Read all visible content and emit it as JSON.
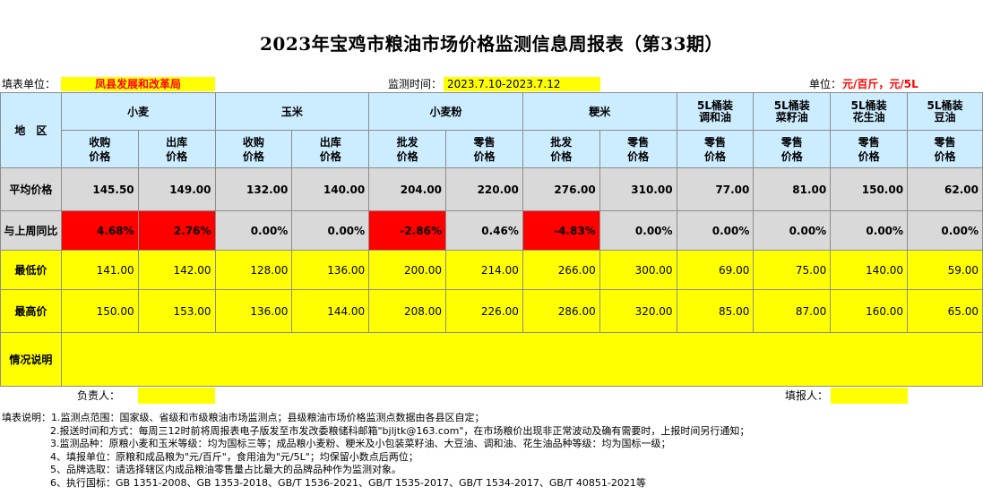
{
  "title": "2023年宝鸡市粮油市场价格监测信息周报表（第33期）",
  "info": {
    "unit_label": "填表单位：",
    "unit_value": "凤县发展和改革局",
    "time_label": "监测时间：",
    "time_value": "2023.7.10-2023.7.12",
    "price_unit_label": "单位：",
    "price_unit_value": "元/百斤，元/5L"
  },
  "headers": {
    "region": "地　区",
    "wheat": "小麦",
    "corn": "玉米",
    "flour": "小麦粉",
    "rice": "粳米",
    "oil1": "5L桶装\n调和油",
    "oil2": "5L桶装\n菜籽油",
    "oil3": "5L桶装\n花生油",
    "oil4": "5L桶装\n豆油",
    "purchase": "收购\n价格",
    "outbound": "出库\n价格",
    "wholesale": "批发\n价格",
    "retail": "零售\n价格"
  },
  "rows": {
    "avg_label": "平均价格",
    "avg": [
      "145.50",
      "149.00",
      "132.00",
      "140.00",
      "204.00",
      "220.00",
      "276.00",
      "310.00",
      "77.00",
      "81.00",
      "150.00",
      "62.00"
    ],
    "wow_label": "与上周同比",
    "wow": [
      "4.68%",
      "2.76%",
      "0.00%",
      "0.00%",
      "-2.86%",
      "0.46%",
      "-4.83%",
      "0.00%",
      "0.00%",
      "0.00%",
      "0.00%",
      "0.00%"
    ],
    "wow_highlight": [
      true,
      true,
      false,
      false,
      true,
      false,
      true,
      false,
      false,
      false,
      false,
      false
    ],
    "min_label": "最低价",
    "min": [
      "141.00",
      "142.00",
      "128.00",
      "136.00",
      "200.00",
      "214.00",
      "266.00",
      "300.00",
      "69.00",
      "75.00",
      "140.00",
      "59.00"
    ],
    "max_label": "最高价",
    "max": [
      "150.00",
      "153.00",
      "136.00",
      "144.00",
      "208.00",
      "226.00",
      "286.00",
      "320.00",
      "85.00",
      "87.00",
      "160.00",
      "65.00"
    ],
    "note_label": "情况说明"
  },
  "footer": {
    "responsible": "负责人：",
    "filler": "填报人："
  },
  "notes": [
    "填表说明：1.监测点范围：国家级、省级和市级粮油市场监测点；县级粮油市场价格监测点数据由各县区自定；",
    "2.报送时间和方式：每周三12时前将周报表电子版发至市发改委粮储科邮箱\"bjljtk@163.com\"，在市场粮价出现非正常波动及确有需要时，上报时间另行通知；",
    "3.监测品种：原粮小麦和玉米等级：均为国标三等；成品粮小麦粉、粳米及小包装菜籽油、大豆油、调和油、花生油品种等级：均为国标一级；",
    "4、填报单位：原粮和成品粮为\"元/百斤\"，食用油为\"元/5L\"；均保留小数点后两位；",
    "5、品牌选取：请选择辖区内成品粮油零售量占比最大的品牌品种作为监测对象。",
    "6、执行国标：GB 1351-2008、GB 1353-2018、GB/T 1536-2021、GB/T 1535-2017、GB/T 1534-2017、GB/T 40851-2021等"
  ]
}
